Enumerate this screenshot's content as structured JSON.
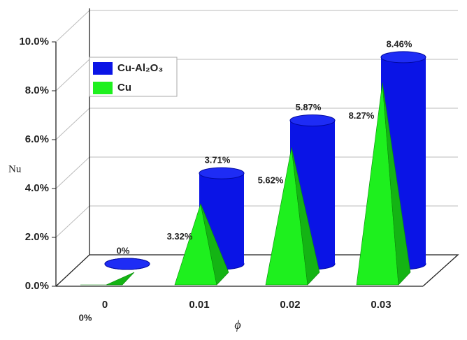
{
  "chart_data": {
    "type": "bar3d",
    "x_label": "ϕ",
    "y_label": "Nu",
    "categories": [
      "0",
      "0.01",
      "0.02",
      "0.03"
    ],
    "series": [
      {
        "name": "Cu-Al₂O₃",
        "color": "#0a14e6",
        "values": [
          0,
          3.71,
          5.87,
          8.46
        ],
        "value_labels": [
          "0%",
          "3.71%",
          "5.87%",
          "8.46%"
        ]
      },
      {
        "name": "Cu",
        "color": "#1ef01e",
        "values": [
          0,
          3.32,
          5.62,
          8.27
        ],
        "value_labels": [
          "0%",
          "3.32%",
          "5.62%",
          "8.27%"
        ]
      }
    ],
    "ylim": [
      0,
      10
    ],
    "yticks": [
      {
        "value": 0,
        "label": "0.0%"
      },
      {
        "value": 2,
        "label": "2.0%"
      },
      {
        "value": 4,
        "label": "4.0%"
      },
      {
        "value": 6,
        "label": "6.0%"
      },
      {
        "value": 8,
        "label": "8.0%"
      },
      {
        "value": 10,
        "label": "10.0%"
      }
    ],
    "grid": true
  }
}
